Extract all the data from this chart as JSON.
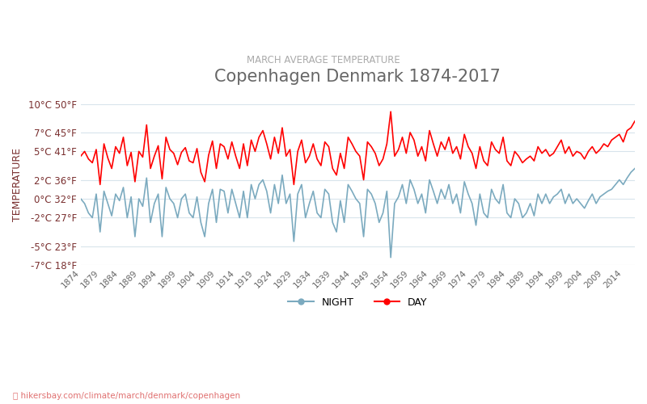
{
  "title": "Copenhagen Denmark 1874-2017",
  "subtitle": "MARCH AVERAGE TEMPERATURE",
  "ylabel": "TEMPERATURE",
  "xlabel_url": "📍 hikersbay.com/climate/march/denmark/copenhagen",
  "legend_night": "NIGHT",
  "legend_day": "DAY",
  "color_day": "#ff0000",
  "color_night": "#7baabf",
  "background_color": "#ffffff",
  "grid_color": "#d8e4ec",
  "title_color": "#666666",
  "subtitle_color": "#aaaaaa",
  "ylabel_color": "#7a3030",
  "tick_color": "#7a3030",
  "url_color": "#e07070",
  "ylim_min": -7,
  "ylim_max": 10,
  "yticks_c": [
    -7,
    -5,
    -2,
    0,
    2,
    5,
    7,
    10
  ],
  "yticks_f": [
    18,
    23,
    27,
    32,
    36,
    41,
    45,
    50
  ],
  "years": [
    1874,
    1875,
    1876,
    1877,
    1878,
    1879,
    1880,
    1881,
    1882,
    1883,
    1884,
    1885,
    1886,
    1887,
    1888,
    1889,
    1890,
    1891,
    1892,
    1893,
    1894,
    1895,
    1896,
    1897,
    1898,
    1899,
    1900,
    1901,
    1902,
    1903,
    1904,
    1905,
    1906,
    1907,
    1908,
    1909,
    1910,
    1911,
    1912,
    1913,
    1914,
    1915,
    1916,
    1917,
    1918,
    1919,
    1920,
    1921,
    1922,
    1923,
    1924,
    1925,
    1926,
    1927,
    1928,
    1929,
    1930,
    1931,
    1932,
    1933,
    1934,
    1935,
    1936,
    1937,
    1938,
    1939,
    1940,
    1941,
    1942,
    1943,
    1944,
    1945,
    1946,
    1947,
    1948,
    1949,
    1950,
    1951,
    1952,
    1953,
    1954,
    1955,
    1956,
    1957,
    1958,
    1959,
    1960,
    1961,
    1962,
    1963,
    1964,
    1965,
    1966,
    1967,
    1968,
    1969,
    1970,
    1971,
    1972,
    1973,
    1974,
    1975,
    1976,
    1977,
    1978,
    1979,
    1980,
    1981,
    1982,
    1983,
    1984,
    1985,
    1986,
    1987,
    1988,
    1989,
    1990,
    1991,
    1992,
    1993,
    1994,
    1995,
    1996,
    1997,
    1998,
    1999,
    2000,
    2001,
    2002,
    2003,
    2004,
    2005,
    2006,
    2007,
    2008,
    2009,
    2010,
    2011,
    2012,
    2013,
    2014,
    2015,
    2016,
    2017
  ],
  "day_temps": [
    4.5,
    5.0,
    4.2,
    3.8,
    5.2,
    1.5,
    5.8,
    4.3,
    3.2,
    5.5,
    4.8,
    6.5,
    3.5,
    4.9,
    1.8,
    5.0,
    4.4,
    7.8,
    3.2,
    4.5,
    5.6,
    2.1,
    6.5,
    5.2,
    4.8,
    3.6,
    4.9,
    5.4,
    4.0,
    3.8,
    5.3,
    2.8,
    1.8,
    4.6,
    6.1,
    3.2,
    5.8,
    5.5,
    4.2,
    6.0,
    4.5,
    3.2,
    5.8,
    3.5,
    6.2,
    5.0,
    6.5,
    7.2,
    5.8,
    4.2,
    6.5,
    4.8,
    7.5,
    4.5,
    5.2,
    1.5,
    5.0,
    6.2,
    3.8,
    4.5,
    5.8,
    4.2,
    3.5,
    6.0,
    5.5,
    3.2,
    2.5,
    4.8,
    3.2,
    6.5,
    5.8,
    5.0,
    4.5,
    2.0,
    6.0,
    5.5,
    4.8,
    3.5,
    4.2,
    5.8,
    9.2,
    4.5,
    5.2,
    6.5,
    4.8,
    7.0,
    6.2,
    4.5,
    5.5,
    4.0,
    7.2,
    5.8,
    4.5,
    6.0,
    5.2,
    6.5,
    4.8,
    5.5,
    4.2,
    6.8,
    5.5,
    4.8,
    3.2,
    5.5,
    4.0,
    3.5,
    6.0,
    5.2,
    4.8,
    6.5,
    4.0,
    3.5,
    5.0,
    4.5,
    3.8,
    4.2,
    4.5,
    4.0,
    5.5,
    4.8,
    5.2,
    4.5,
    4.8,
    5.5,
    6.2,
    4.8,
    5.5,
    4.5,
    5.0,
    4.8,
    4.2,
    5.0,
    5.5,
    4.8,
    5.2,
    5.8,
    5.5,
    6.2,
    6.5,
    6.8,
    6.0,
    7.2,
    7.5,
    8.2
  ],
  "night_temps": [
    0.0,
    -0.5,
    -1.5,
    -2.0,
    0.5,
    -3.5,
    0.8,
    -0.5,
    -1.8,
    0.5,
    -0.2,
    1.2,
    -2.0,
    0.2,
    -4.0,
    0.0,
    -0.8,
    2.2,
    -2.5,
    -0.5,
    0.5,
    -4.0,
    1.2,
    0.0,
    -0.5,
    -2.0,
    0.0,
    0.5,
    -1.5,
    -2.0,
    0.2,
    -2.5,
    -4.0,
    -0.5,
    1.0,
    -2.5,
    1.0,
    0.8,
    -1.5,
    1.0,
    -0.5,
    -2.0,
    0.8,
    -2.0,
    1.5,
    0.0,
    1.5,
    2.0,
    0.8,
    -1.5,
    1.5,
    -0.5,
    2.5,
    -0.5,
    0.5,
    -4.5,
    0.5,
    1.5,
    -2.0,
    -0.5,
    0.8,
    -1.5,
    -2.0,
    1.0,
    0.5,
    -2.5,
    -3.5,
    -0.2,
    -2.5,
    1.5,
    0.8,
    0.0,
    -0.5,
    -4.0,
    1.0,
    0.5,
    -0.5,
    -2.5,
    -1.5,
    0.8,
    -6.2,
    -0.5,
    0.2,
    1.5,
    -0.5,
    2.0,
    1.0,
    -0.5,
    0.5,
    -1.5,
    2.0,
    0.8,
    -0.5,
    1.0,
    0.0,
    1.5,
    -0.5,
    0.5,
    -1.5,
    1.8,
    0.5,
    -0.5,
    -2.8,
    0.5,
    -1.5,
    -2.0,
    1.0,
    0.0,
    -0.5,
    1.5,
    -1.5,
    -2.0,
    0.0,
    -0.5,
    -2.0,
    -1.5,
    -0.5,
    -1.8,
    0.5,
    -0.5,
    0.5,
    -0.5,
    0.2,
    0.5,
    1.0,
    -0.5,
    0.5,
    -0.5,
    0.0,
    -0.5,
    -1.0,
    -0.2,
    0.5,
    -0.5,
    0.2,
    0.5,
    0.8,
    1.0,
    1.5,
    2.0,
    1.5,
    2.2,
    2.8,
    3.2
  ]
}
